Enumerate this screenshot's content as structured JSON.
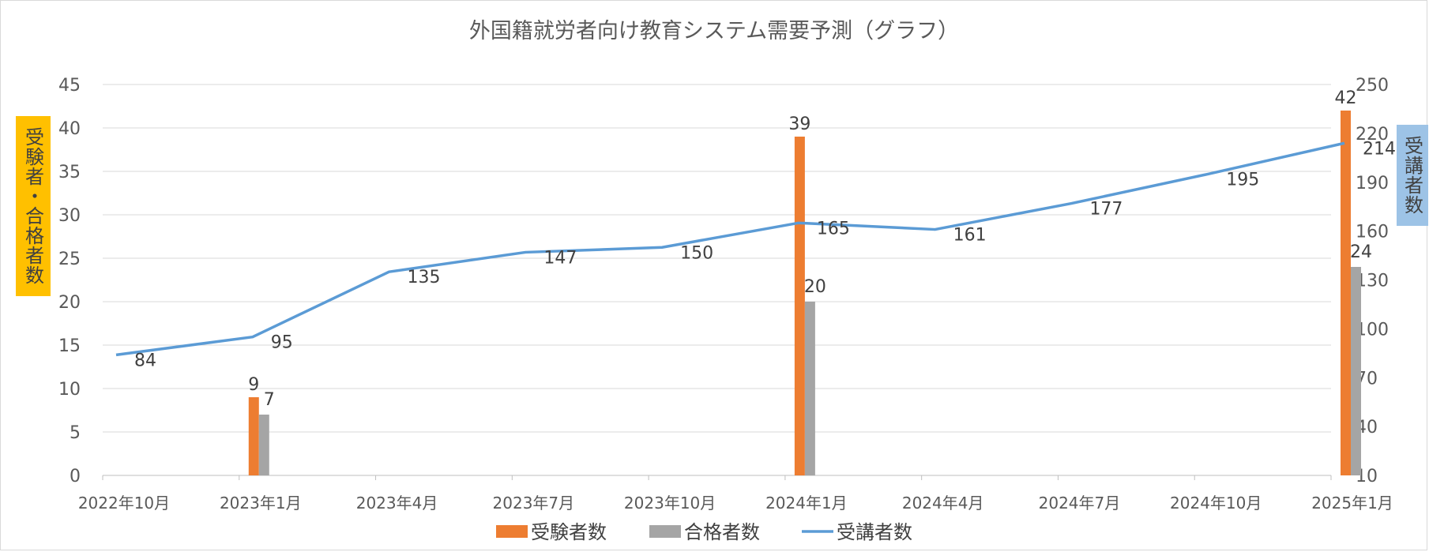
{
  "chart_data": {
    "type": "bar",
    "title": "外国籍就労者向け教育システム需要予測（グラフ）",
    "categories": [
      "2022年10月",
      "2023年1月",
      "2023年4月",
      "2023年7月",
      "2023年10月",
      "2024年1月",
      "2024年4月",
      "2024年7月",
      "2024年10月",
      "2025年1月"
    ],
    "series": [
      {
        "name": "受験者数",
        "type": "bar",
        "axis": "left",
        "color": "#ed7d31",
        "values": [
          null,
          9,
          null,
          null,
          null,
          39,
          null,
          null,
          null,
          42
        ]
      },
      {
        "name": "合格者数",
        "type": "bar",
        "axis": "left",
        "color": "#a5a5a5",
        "values": [
          null,
          7,
          null,
          null,
          null,
          20,
          null,
          null,
          null,
          24
        ]
      },
      {
        "name": "受講者数",
        "type": "line",
        "axis": "right",
        "color": "#5b9bd5",
        "values": [
          84,
          95,
          135,
          147,
          150,
          165,
          161,
          177,
          195,
          214
        ]
      }
    ],
    "y_left": {
      "label": "受験者・合格者数",
      "min": 0,
      "max": 45,
      "step": 5,
      "label_color": "#ffc000"
    },
    "y_right": {
      "label": "受講者数",
      "min": 10,
      "max": 250,
      "step": 30,
      "label_color": "#9dc3e6"
    },
    "legend_position": "bottom",
    "grid": true
  }
}
